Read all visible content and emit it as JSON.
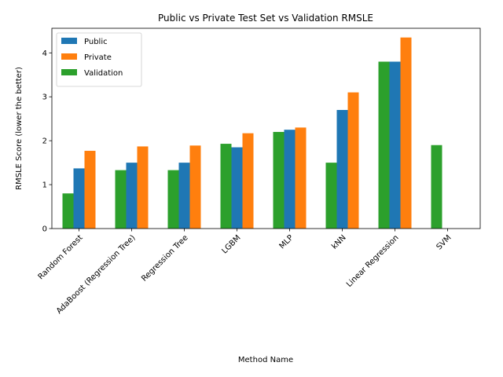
{
  "chart_data": {
    "type": "bar",
    "title": "Public vs Private Test Set vs Validation RMSLE",
    "xlabel": "Method Name",
    "ylabel": "RMSLE Score (lower the better)",
    "categories": [
      "Random Forest",
      "AdaBoost (Regression Tree)",
      "Regression Tree",
      "LGBM",
      "MLP",
      "kNN",
      "Linear Regression",
      "SVM"
    ],
    "series": [
      {
        "name": "Validation",
        "color": "#2ca02c",
        "values": [
          0.8,
          1.33,
          1.33,
          1.93,
          2.2,
          1.5,
          3.8,
          1.9
        ]
      },
      {
        "name": "Public",
        "color": "#1f77b4",
        "values": [
          1.37,
          1.5,
          1.5,
          1.85,
          2.25,
          2.7,
          3.8,
          null
        ]
      },
      {
        "name": "Private",
        "color": "#ff7f0e",
        "values": [
          1.77,
          1.87,
          1.89,
          2.17,
          2.3,
          3.1,
          4.35,
          null
        ]
      }
    ],
    "legend_order": [
      "Public",
      "Private",
      "Validation"
    ],
    "legend_position": "upper-left",
    "ylim": [
      0,
      4.56
    ],
    "yticks": [
      0,
      1,
      2,
      3,
      4
    ],
    "grid": false
  }
}
